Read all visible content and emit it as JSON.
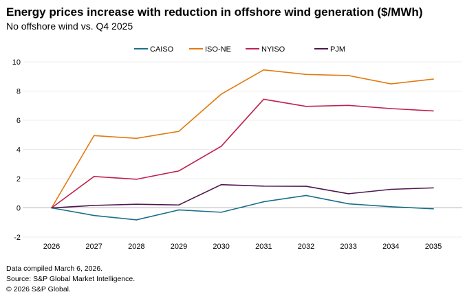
{
  "chart_data": {
    "type": "line",
    "title": "Energy prices increase with reduction in offshore wind generation ($/MWh)",
    "subtitle": "No offshore wind vs. Q4 2025",
    "xlabel": "",
    "ylabel": "",
    "categories": [
      "2026",
      "2027",
      "2028",
      "2029",
      "2030",
      "2031",
      "2032",
      "2033",
      "2034",
      "2035"
    ],
    "ylim": [
      -2,
      10
    ],
    "yticks": [
      -2,
      0,
      2,
      4,
      6,
      8,
      10
    ],
    "grid": true,
    "legend_position": "top",
    "series": [
      {
        "name": "CAISO",
        "color": "#1a6f8a",
        "values": [
          0,
          -0.52,
          -0.82,
          -0.14,
          -0.3,
          0.42,
          0.85,
          0.28,
          0.08,
          -0.06
        ]
      },
      {
        "name": "ISO-NE",
        "color": "#e07b10",
        "values": [
          0,
          4.95,
          4.76,
          5.24,
          7.79,
          9.45,
          9.14,
          9.06,
          8.49,
          8.82
        ]
      },
      {
        "name": "NYISO",
        "color": "#c0214f",
        "values": [
          0,
          2.15,
          1.96,
          2.53,
          4.22,
          7.44,
          6.95,
          7.02,
          6.8,
          6.64
        ]
      },
      {
        "name": "PJM",
        "color": "#4d1650",
        "values": [
          0,
          0.17,
          0.25,
          0.2,
          1.59,
          1.49,
          1.48,
          0.97,
          1.27,
          1.37
        ]
      }
    ]
  },
  "notes": [
    "Data compiled March 6, 2026.",
    "Source: S&P Global Market Intelligence.",
    "© 2026 S&P Global."
  ]
}
